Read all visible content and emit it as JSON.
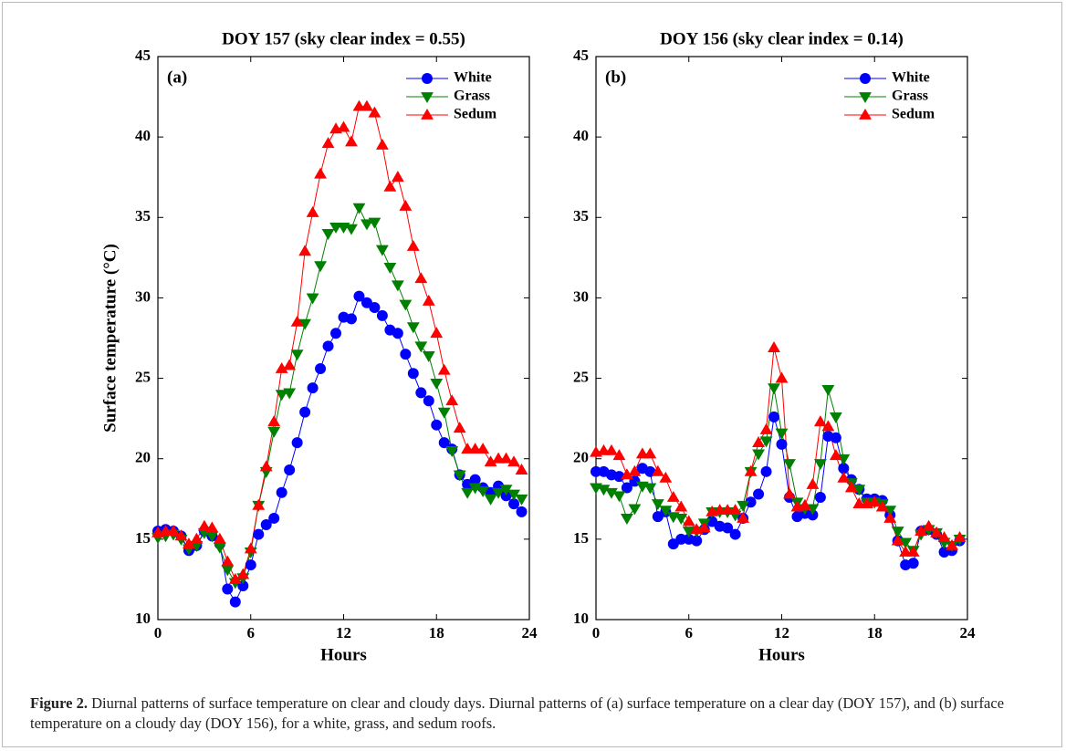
{
  "chart_data": [
    {
      "type": "line",
      "title": "DOY 157 (sky clear index = 0.55)",
      "annotation": "(a)",
      "xlabel": "Hours",
      "ylabel": "Surface temperature (°C)",
      "x": [
        0,
        0.5,
        1,
        1.5,
        2,
        2.5,
        3,
        3.5,
        4,
        4.5,
        5,
        5.5,
        6,
        6.5,
        7,
        7.5,
        8,
        8.5,
        9,
        9.5,
        10,
        10.5,
        11,
        11.5,
        12,
        12.5,
        13,
        13.5,
        14,
        14.5,
        15,
        15.5,
        16,
        16.5,
        17,
        17.5,
        18,
        18.5,
        19,
        19.5,
        20,
        20.5,
        21,
        21.5,
        22,
        22.5,
        23,
        23.5
      ],
      "xlim": [
        0,
        24
      ],
      "xticks": [
        0,
        6,
        12,
        18,
        24
      ],
      "ylim": [
        10,
        45
      ],
      "yticks": [
        10,
        15,
        20,
        25,
        30,
        35,
        40,
        45
      ],
      "legend": "upper right",
      "series": [
        {
          "name": "White",
          "color": "#0000ff",
          "marker": "circle",
          "values": [
            15.5,
            15.6,
            15.5,
            15.2,
            14.3,
            14.6,
            15.5,
            15.2,
            14.7,
            11.9,
            11.1,
            12.1,
            13.4,
            15.3,
            15.9,
            16.3,
            17.9,
            19.3,
            21.0,
            22.9,
            24.4,
            25.6,
            27.0,
            27.8,
            28.8,
            28.7,
            30.1,
            29.7,
            29.4,
            28.9,
            28.0,
            27.8,
            26.5,
            25.3,
            24.1,
            23.6,
            22.1,
            21.0,
            20.6,
            19.0,
            18.4,
            18.7,
            18.2,
            17.9,
            18.3,
            17.7,
            17.2,
            16.7
          ]
        },
        {
          "name": "Grass",
          "color": "#008000",
          "marker": "triangle-down",
          "values": [
            15.1,
            15.2,
            15.3,
            15.0,
            14.4,
            14.6,
            15.4,
            15.2,
            14.5,
            13.1,
            12.3,
            12.6,
            14.2,
            17.1,
            19.2,
            21.7,
            24.0,
            24.1,
            26.5,
            28.4,
            30.0,
            32.0,
            34.0,
            34.4,
            34.4,
            34.3,
            35.6,
            34.6,
            34.7,
            33.0,
            31.9,
            30.8,
            29.6,
            28.2,
            27.0,
            26.4,
            24.7,
            22.9,
            20.5,
            19.0,
            17.9,
            18.2,
            18.0,
            17.5,
            17.9,
            18.1,
            17.8,
            17.5
          ]
        },
        {
          "name": "Sedum",
          "color": "#ff0000",
          "marker": "triangle-up",
          "values": [
            15.4,
            15.5,
            15.5,
            15.2,
            14.7,
            15.0,
            15.8,
            15.7,
            15.0,
            13.6,
            12.5,
            12.8,
            14.4,
            17.1,
            19.5,
            22.3,
            25.6,
            25.8,
            28.5,
            32.9,
            35.3,
            37.7,
            39.6,
            40.5,
            40.6,
            39.7,
            41.9,
            41.9,
            41.5,
            39.5,
            36.9,
            37.5,
            35.7,
            33.2,
            31.2,
            29.8,
            27.8,
            25.5,
            23.6,
            21.9,
            20.6,
            20.6,
            20.6,
            19.8,
            20.0,
            20.0,
            19.8,
            19.3
          ]
        }
      ]
    },
    {
      "type": "line",
      "title": "DOY 156 (sky clear index = 0.14)",
      "annotation": "(b)",
      "xlabel": "Hours",
      "x": [
        0,
        0.5,
        1,
        1.5,
        2,
        2.5,
        3,
        3.5,
        4,
        4.5,
        5,
        5.5,
        6,
        6.5,
        7,
        7.5,
        8,
        8.5,
        9,
        9.5,
        10,
        10.5,
        11,
        11.5,
        12,
        12.5,
        13,
        13.5,
        14,
        14.5,
        15,
        15.5,
        16,
        16.5,
        17,
        17.5,
        18,
        18.5,
        19,
        19.5,
        20,
        20.5,
        21,
        21.5,
        22,
        22.5,
        23,
        23.5
      ],
      "xlim": [
        0,
        24
      ],
      "xticks": [
        0,
        6,
        12,
        18,
        24
      ],
      "ylim": [
        10,
        45
      ],
      "yticks": [
        10,
        15,
        20,
        25,
        30,
        35,
        40,
        45
      ],
      "legend": "upper right",
      "series": [
        {
          "name": "White",
          "color": "#0000ff",
          "marker": "circle",
          "values": [
            19.2,
            19.2,
            19.0,
            18.9,
            18.2,
            18.6,
            19.4,
            19.2,
            16.4,
            16.7,
            14.7,
            15.0,
            15.0,
            14.9,
            15.6,
            16.1,
            15.8,
            15.7,
            15.3,
            16.3,
            17.3,
            17.8,
            19.2,
            22.6,
            20.9,
            17.6,
            16.4,
            16.6,
            16.5,
            17.6,
            21.4,
            21.3,
            19.4,
            18.7,
            18.1,
            17.5,
            17.5,
            17.4,
            16.5,
            14.9,
            13.4,
            13.5,
            15.5,
            15.6,
            15.3,
            14.2,
            14.3,
            14.9
          ]
        },
        {
          "name": "Grass",
          "color": "#008000",
          "marker": "triangle-down",
          "values": [
            18.2,
            18.1,
            17.9,
            17.7,
            16.3,
            16.9,
            18.3,
            18.2,
            17.2,
            16.8,
            16.4,
            16.3,
            15.5,
            15.5,
            16.0,
            16.7,
            16.7,
            16.7,
            16.5,
            17.1,
            19.2,
            20.3,
            21.1,
            24.4,
            21.6,
            19.7,
            17.3,
            16.9,
            16.9,
            19.7,
            24.3,
            22.6,
            20.0,
            18.5,
            18.1,
            17.3,
            17.3,
            17.2,
            16.8,
            15.5,
            14.8,
            14.3,
            15.3,
            15.6,
            15.4,
            14.8,
            14.6,
            15.0
          ]
        },
        {
          "name": "Sedum",
          "color": "#ff0000",
          "marker": "triangle-up",
          "values": [
            20.4,
            20.5,
            20.5,
            20.2,
            19.0,
            19.2,
            20.3,
            20.3,
            19.2,
            18.8,
            17.6,
            17.0,
            16.1,
            15.6,
            15.7,
            16.7,
            16.8,
            16.8,
            16.8,
            16.3,
            19.2,
            21.0,
            21.8,
            26.9,
            25.0,
            17.8,
            17.0,
            17.1,
            18.4,
            22.3,
            22.0,
            20.2,
            18.8,
            18.2,
            17.2,
            17.2,
            17.3,
            17.0,
            16.3,
            14.9,
            14.2,
            14.2,
            15.5,
            15.8,
            15.4,
            15.1,
            14.6,
            15.1
          ]
        }
      ]
    }
  ],
  "caption": {
    "label": "Figure 2.",
    "text": "Diurnal patterns of surface temperature on clear and cloudy days. Diurnal patterns of (a) surface temperature on a clear day (DOY 157), and (b) surface temperature on a cloudy day (DOY 156), for a white, grass, and sedum roofs."
  }
}
